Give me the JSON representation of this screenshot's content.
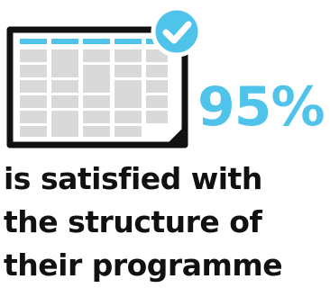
{
  "colors": {
    "accent": "#4fc3ea",
    "text": "#111111",
    "cell": "#d9d9d9",
    "frame": "#111111"
  },
  "icons": {
    "schedule": "timetable-icon",
    "check": "checkmark-badge-icon"
  },
  "stat": {
    "value": "95%"
  },
  "caption": {
    "lines": [
      "is satisfied with",
      "the structure of",
      "their programme"
    ]
  }
}
